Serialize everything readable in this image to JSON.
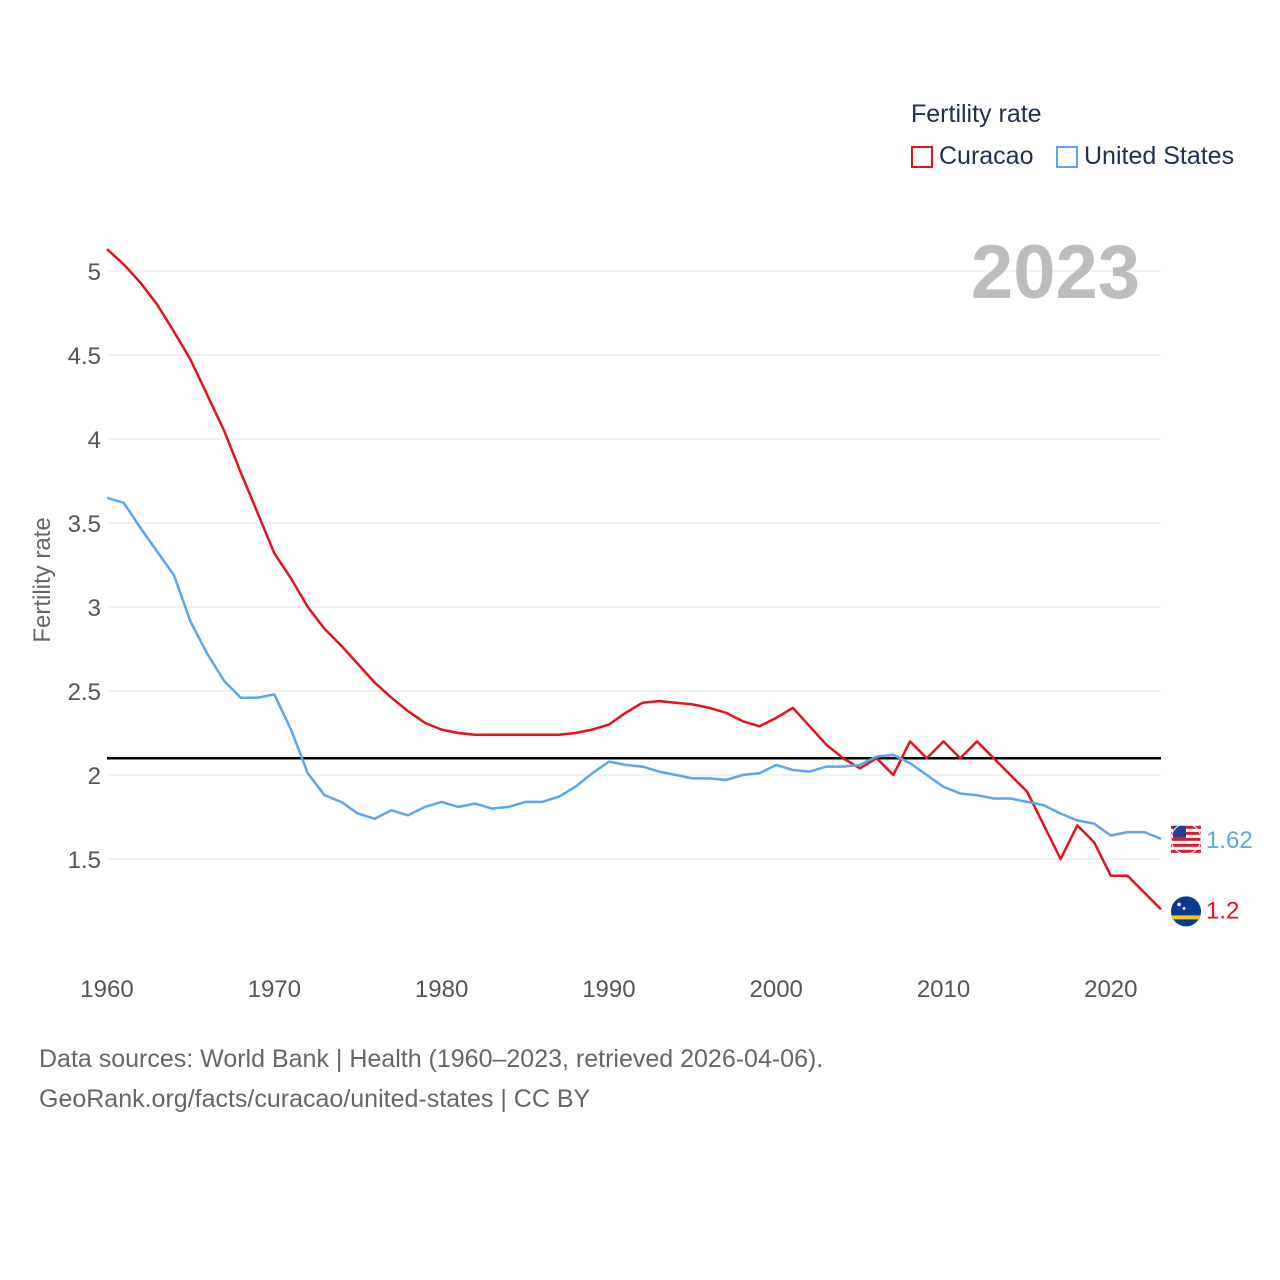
{
  "legend": {
    "title": "Fertility rate",
    "items": [
      {
        "label": "Curacao",
        "color": "#e8101a"
      },
      {
        "label": "United States",
        "color": "#5aa6ea"
      }
    ]
  },
  "footer": {
    "line1": "Data sources: World Bank | Health (1960–2023, retrieved 2026-04-06).",
    "line2": "GeoRank.org/facts/curacao/united-states | CC BY"
  },
  "chart_data": {
    "type": "line",
    "title": "Fertility rate",
    "year_label": "2023",
    "ylabel": "Fertility rate",
    "xlabel": "",
    "xlim": [
      1960,
      2023
    ],
    "ylim": [
      0.9,
      5.3
    ],
    "x_ticks": [
      1960,
      1970,
      1980,
      1990,
      2000,
      2010,
      2020
    ],
    "y_ticks": [
      1.5,
      2,
      2.5,
      3,
      3.5,
      4,
      4.5,
      5
    ],
    "reference_line": 2.1,
    "x": [
      1960,
      1961,
      1962,
      1963,
      1964,
      1965,
      1966,
      1967,
      1968,
      1969,
      1970,
      1971,
      1972,
      1973,
      1974,
      1975,
      1976,
      1977,
      1978,
      1979,
      1980,
      1981,
      1982,
      1983,
      1984,
      1985,
      1986,
      1987,
      1988,
      1989,
      1990,
      1991,
      1992,
      1993,
      1994,
      1995,
      1996,
      1997,
      1998,
      1999,
      2000,
      2001,
      2002,
      2003,
      2004,
      2005,
      2006,
      2007,
      2008,
      2009,
      2010,
      2011,
      2012,
      2013,
      2014,
      2015,
      2016,
      2017,
      2018,
      2019,
      2020,
      2021,
      2022,
      2023
    ],
    "series": [
      {
        "name": "Curacao",
        "color": "#e8101a",
        "end_label": "1.2",
        "values": [
          5.13,
          5.04,
          4.93,
          4.8,
          4.64,
          4.47,
          4.26,
          4.05,
          3.8,
          3.56,
          3.32,
          3.17,
          3.0,
          2.87,
          2.77,
          2.66,
          2.55,
          2.46,
          2.38,
          2.31,
          2.27,
          2.25,
          2.24,
          2.24,
          2.24,
          2.24,
          2.24,
          2.24,
          2.25,
          2.27,
          2.3,
          2.37,
          2.43,
          2.44,
          2.43,
          2.42,
          2.4,
          2.37,
          2.32,
          2.29,
          2.34,
          2.4,
          2.29,
          2.18,
          2.1,
          2.04,
          2.1,
          2.0,
          2.2,
          2.1,
          2.2,
          2.1,
          2.2,
          2.1,
          2.0,
          1.9,
          1.7,
          1.5,
          1.7,
          1.6,
          1.4,
          1.4,
          1.3,
          1.2
        ]
      },
      {
        "name": "United States",
        "color": "#5aa6ea",
        "end_label": "1.62",
        "values": [
          3.65,
          3.62,
          3.47,
          3.33,
          3.19,
          2.91,
          2.72,
          2.56,
          2.46,
          2.46,
          2.48,
          2.27,
          2.01,
          1.88,
          1.84,
          1.77,
          1.74,
          1.79,
          1.76,
          1.81,
          1.84,
          1.81,
          1.83,
          1.8,
          1.81,
          1.84,
          1.84,
          1.87,
          1.93,
          2.01,
          2.08,
          2.06,
          2.05,
          2.02,
          2.0,
          1.98,
          1.98,
          1.97,
          2.0,
          2.01,
          2.06,
          2.03,
          2.02,
          2.05,
          2.05,
          2.06,
          2.11,
          2.12,
          2.07,
          2.0,
          1.93,
          1.89,
          1.88,
          1.86,
          1.86,
          1.84,
          1.82,
          1.77,
          1.73,
          1.71,
          1.64,
          1.66,
          1.66,
          1.62
        ]
      }
    ]
  }
}
